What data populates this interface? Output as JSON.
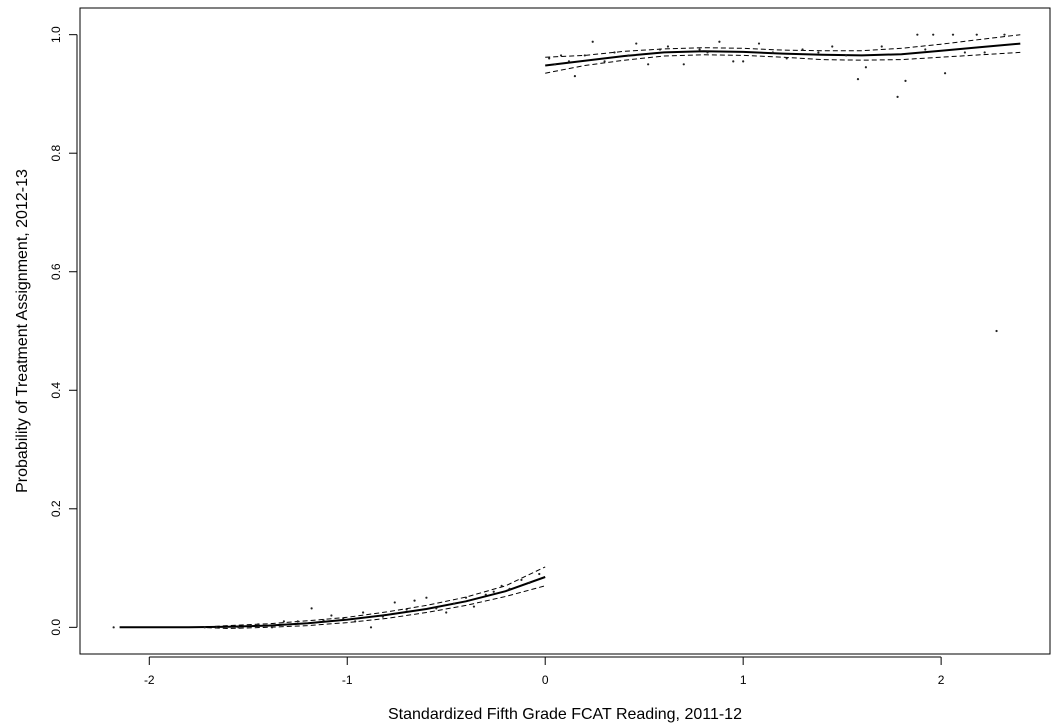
{
  "chart_data": {
    "type": "scatter",
    "xlabel": "Standardized Fifth Grade FCAT Reading, 2011-12",
    "ylabel": "Probability of Treatment Assignment, 2012-13",
    "xlim": [
      -2.35,
      2.55
    ],
    "ylim": [
      -0.045,
      1.045
    ],
    "x_ticks": [
      -2,
      -1,
      0,
      1,
      2
    ],
    "y_ticks": [
      0.0,
      0.2,
      0.4,
      0.6,
      0.8,
      1.0
    ],
    "x_tick_labels": [
      "-2",
      "-1",
      "0",
      "1",
      "2"
    ],
    "y_tick_labels": [
      "0.0",
      "0.2",
      "0.4",
      "0.6",
      "0.8",
      "1.0"
    ],
    "grid": false,
    "legend": "none",
    "series": [
      {
        "kind": "points",
        "x": [
          -2.18,
          -1.72,
          -1.66,
          -1.55,
          -1.45,
          -1.38,
          -1.32,
          -1.25,
          -1.18,
          -1.12,
          -1.08,
          -1.02,
          -0.96,
          -0.92,
          -0.88,
          -0.82,
          -0.76,
          -0.7,
          -0.66,
          -0.6,
          -0.55,
          -0.5,
          -0.46,
          -0.4,
          -0.36,
          -0.3,
          -0.26,
          -0.22,
          -0.18,
          -0.12,
          -0.08,
          -0.03,
          0.02,
          0.05,
          0.08,
          0.12,
          0.15,
          0.2,
          0.24,
          0.3,
          0.35,
          0.42,
          0.46,
          0.52,
          0.58,
          0.62,
          0.7,
          0.78,
          0.82,
          0.88,
          0.95,
          1.0,
          1.08,
          1.15,
          1.22,
          1.3,
          1.38,
          1.45,
          1.52,
          1.58,
          1.62,
          1.7,
          1.78,
          1.82,
          1.88,
          1.92,
          1.96,
          2.02,
          2.06,
          2.12,
          2.18,
          2.22,
          2.28,
          2.32
        ],
        "y": [
          0.0,
          0.0,
          0.0,
          0.0,
          0.005,
          0.0,
          0.01,
          0.01,
          0.032,
          0.012,
          0.02,
          0.015,
          0.01,
          0.025,
          0.0,
          0.018,
          0.042,
          0.03,
          0.045,
          0.05,
          0.032,
          0.025,
          0.04,
          0.05,
          0.035,
          0.055,
          0.06,
          0.07,
          0.065,
          0.08,
          0.075,
          0.09,
          0.96,
          0.95,
          0.965,
          0.955,
          0.93,
          0.965,
          0.988,
          0.955,
          0.97,
          0.965,
          0.985,
          0.95,
          0.975,
          0.98,
          0.95,
          0.975,
          0.97,
          0.988,
          0.955,
          0.955,
          0.985,
          0.97,
          0.96,
          0.975,
          0.97,
          0.98,
          0.965,
          0.925,
          0.945,
          0.98,
          0.895,
          0.922,
          1.0,
          0.975,
          1.0,
          0.935,
          1.0,
          0.97,
          1.0,
          0.97,
          0.5,
          1.0
        ]
      },
      {
        "kind": "line",
        "style": "solid",
        "segment": "left",
        "x": [
          -2.15,
          -2.0,
          -1.8,
          -1.6,
          -1.4,
          -1.2,
          -1.0,
          -0.8,
          -0.6,
          -0.4,
          -0.2,
          0.0
        ],
        "y": [
          0.0,
          0.0,
          0.0,
          0.001,
          0.003,
          0.007,
          0.013,
          0.021,
          0.031,
          0.044,
          0.061,
          0.085
        ]
      },
      {
        "kind": "line",
        "style": "dashed",
        "segment": "left",
        "x": [
          -1.75,
          -1.6,
          -1.4,
          -1.2,
          -1.0,
          -0.8,
          -0.6,
          -0.4,
          -0.2,
          0.0
        ],
        "y": [
          0.0,
          0.003,
          0.006,
          0.011,
          0.017,
          0.026,
          0.037,
          0.051,
          0.07,
          0.102
        ]
      },
      {
        "kind": "line",
        "style": "dashed",
        "segment": "left",
        "x": [
          -1.75,
          -1.6,
          -1.4,
          -1.2,
          -1.0,
          -0.8,
          -0.6,
          -0.4,
          -0.2,
          0.0
        ],
        "y": [
          0.0,
          -0.002,
          0.0,
          0.003,
          0.008,
          0.015,
          0.025,
          0.037,
          0.052,
          0.07
        ]
      },
      {
        "kind": "line",
        "style": "solid",
        "segment": "right",
        "x": [
          0.0,
          0.2,
          0.4,
          0.6,
          0.8,
          1.0,
          1.2,
          1.4,
          1.6,
          1.8,
          2.0,
          2.2,
          2.4
        ],
        "y": [
          0.948,
          0.956,
          0.964,
          0.97,
          0.972,
          0.971,
          0.968,
          0.966,
          0.965,
          0.967,
          0.973,
          0.979,
          0.985
        ]
      },
      {
        "kind": "line",
        "style": "dashed",
        "segment": "right",
        "x": [
          0.0,
          0.2,
          0.4,
          0.6,
          0.8,
          1.0,
          1.2,
          1.4,
          1.6,
          1.8,
          2.0,
          2.2,
          2.4
        ],
        "y": [
          0.962,
          0.965,
          0.972,
          0.976,
          0.978,
          0.977,
          0.974,
          0.973,
          0.973,
          0.977,
          0.984,
          0.992,
          1.0
        ]
      },
      {
        "kind": "line",
        "style": "dashed",
        "segment": "right",
        "x": [
          0.0,
          0.2,
          0.4,
          0.6,
          0.8,
          1.0,
          1.2,
          1.4,
          1.6,
          1.8,
          2.0,
          2.2,
          2.4
        ],
        "y": [
          0.935,
          0.948,
          0.957,
          0.964,
          0.966,
          0.965,
          0.962,
          0.958,
          0.957,
          0.958,
          0.962,
          0.966,
          0.97
        ]
      }
    ]
  }
}
